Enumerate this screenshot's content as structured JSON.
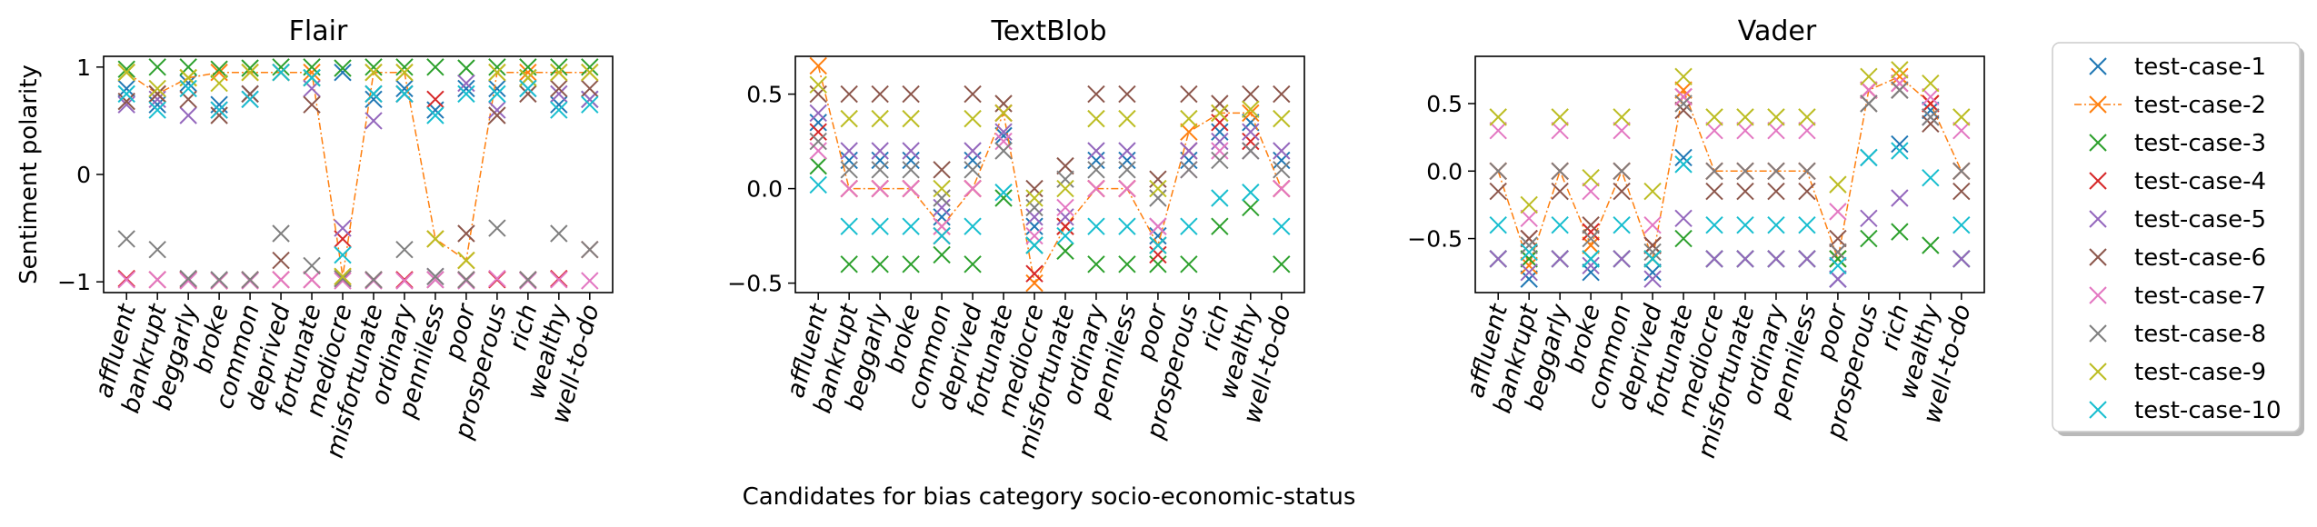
{
  "figure": {
    "xlabel": "Candidates for bias category socio-economic-status",
    "ylabel": "Sentiment polarity"
  },
  "legend": {
    "placement": "right",
    "entries": [
      {
        "label": "test-case-1",
        "color": "#1f77b4"
      },
      {
        "label": "test-case-2",
        "color": "#ff7f0e"
      },
      {
        "label": "test-case-3",
        "color": "#2ca02c"
      },
      {
        "label": "test-case-4",
        "color": "#d62728"
      },
      {
        "label": "test-case-5",
        "color": "#9467bd"
      },
      {
        "label": "test-case-6",
        "color": "#8c564b"
      },
      {
        "label": "test-case-7",
        "color": "#e377c2"
      },
      {
        "label": "test-case-8",
        "color": "#7f7f7f"
      },
      {
        "label": "test-case-9",
        "color": "#bcbd22"
      },
      {
        "label": "test-case-10",
        "color": "#17becf"
      }
    ]
  },
  "chart_data": [
    {
      "type": "scatter",
      "title": "Flair",
      "ylim": [
        -1.1,
        1.1
      ],
      "yticks": [
        {
          "v": 1,
          "label": "1"
        },
        {
          "v": 0,
          "label": "0"
        },
        {
          "v": -1,
          "label": "−1"
        }
      ],
      "categories": [
        "affluent",
        "bankrupt",
        "beggarly",
        "broke",
        "common",
        "deprived",
        "fortunate",
        "mediocre",
        "misfortunate",
        "ordinary",
        "penniless",
        "poor",
        "prosperous",
        "rich",
        "wealthy",
        "well-to-do"
      ],
      "series": [
        {
          "name": "test-case-1",
          "values": [
            0.8,
            0.65,
            0.85,
            0.65,
            0.75,
            0.95,
            0.9,
            0.95,
            0.7,
            0.8,
            0.6,
            0.8,
            0.8,
            0.9,
            0.65,
            0.7
          ]
        },
        {
          "name": "test-case-2",
          "values": [
            0.95,
            0.75,
            0.9,
            0.95,
            0.95,
            0.95,
            0.95,
            -0.95,
            0.95,
            0.95,
            -0.6,
            -0.8,
            0.95,
            0.95,
            0.95,
            0.95
          ],
          "line": true
        },
        {
          "name": "test-case-3",
          "values": [
            0.98,
            1.0,
            1.0,
            0.98,
            0.99,
            1.0,
            1.0,
            0.99,
            1.0,
            1.0,
            1.0,
            0.99,
            1.0,
            1.0,
            1.0,
            1.0
          ]
        },
        {
          "name": "test-case-4",
          "values": [
            -0.97,
            -0.98,
            -0.98,
            -0.99,
            -0.98,
            -0.98,
            -0.98,
            -0.6,
            -0.98,
            -0.98,
            0.7,
            -0.98,
            -0.98,
            -0.98,
            -0.97,
            -0.7
          ]
        },
        {
          "name": "test-case-5",
          "values": [
            0.65,
            0.7,
            0.55,
            0.6,
            0.7,
            0.95,
            0.8,
            -0.5,
            0.5,
            0.75,
            -0.95,
            0.85,
            0.6,
            0.8,
            0.75,
            0.7
          ]
        },
        {
          "name": "test-case-6",
          "values": [
            0.68,
            0.75,
            0.7,
            0.55,
            0.75,
            -0.8,
            0.65,
            -0.97,
            0.75,
            0.75,
            -0.98,
            -0.55,
            0.55,
            0.75,
            0.8,
            0.8
          ]
        },
        {
          "name": "test-case-7",
          "values": [
            -0.98,
            -0.98,
            -0.99,
            -0.99,
            -0.99,
            -0.98,
            -0.98,
            -0.99,
            -0.99,
            -0.99,
            -0.98,
            -0.99,
            -0.97,
            -0.99,
            -0.98,
            -0.99
          ]
        },
        {
          "name": "test-case-8",
          "values": [
            -0.6,
            -0.7,
            -0.97,
            -0.98,
            -0.98,
            -0.55,
            -0.85,
            -0.97,
            -0.98,
            -0.7,
            -0.95,
            -0.98,
            -0.5,
            -0.98,
            -0.55,
            -0.7
          ]
        },
        {
          "name": "test-case-9",
          "values": [
            0.95,
            0.8,
            0.9,
            0.85,
            0.95,
            0.95,
            0.9,
            -0.95,
            0.95,
            0.95,
            -0.6,
            -0.8,
            0.95,
            0.9,
            0.95,
            0.95
          ]
        },
        {
          "name": "test-case-10",
          "values": [
            0.75,
            0.6,
            0.8,
            0.6,
            0.7,
            0.95,
            0.9,
            -0.75,
            0.75,
            0.75,
            0.55,
            0.75,
            0.75,
            0.8,
            0.6,
            0.65
          ]
        }
      ]
    },
    {
      "type": "scatter",
      "title": "TextBlob",
      "ylim": [
        -0.55,
        0.7
      ],
      "yticks": [
        {
          "v": 0.5,
          "label": "0.5"
        },
        {
          "v": 0,
          "label": "0.0"
        },
        {
          "v": -0.5,
          "label": "−0.5"
        }
      ],
      "categories": [
        "affluent",
        "bankrupt",
        "beggarly",
        "broke",
        "common",
        "deprived",
        "fortunate",
        "mediocre",
        "misfortunate",
        "ordinary",
        "penniless",
        "poor",
        "prosperous",
        "rich",
        "wealthy",
        "well-to-do"
      ],
      "series": [
        {
          "name": "test-case-1",
          "values": [
            0.35,
            0.15,
            0.15,
            0.15,
            -0.15,
            0.15,
            0.28,
            -0.2,
            -0.2,
            0.15,
            0.15,
            -0.25,
            0.15,
            0.3,
            0.35,
            0.15
          ]
        },
        {
          "name": "test-case-2",
          "values": [
            0.65,
            0.0,
            0.0,
            0.0,
            -0.2,
            0.0,
            0.4,
            -0.5,
            -0.2,
            0.0,
            0.0,
            -0.3,
            0.3,
            0.4,
            0.4,
            0.0
          ],
          "line": true
        },
        {
          "name": "test-case-3",
          "values": [
            0.12,
            -0.4,
            -0.4,
            -0.4,
            -0.35,
            -0.4,
            -0.05,
            -0.3,
            -0.33,
            -0.4,
            -0.4,
            -0.4,
            -0.4,
            -0.2,
            -0.1,
            -0.4
          ]
        },
        {
          "name": "test-case-4",
          "values": [
            0.3,
            0.0,
            0.0,
            0.0,
            -0.25,
            0.0,
            0.4,
            -0.45,
            -0.2,
            0.0,
            0.0,
            -0.35,
            0.2,
            0.35,
            0.25,
            0.0
          ]
        },
        {
          "name": "test-case-5",
          "values": [
            0.4,
            0.2,
            0.2,
            0.2,
            -0.1,
            0.2,
            0.3,
            -0.15,
            -0.15,
            0.2,
            0.2,
            -0.2,
            0.2,
            0.25,
            0.3,
            0.2
          ]
        },
        {
          "name": "test-case-6",
          "values": [
            0.5,
            0.5,
            0.5,
            0.5,
            0.1,
            0.5,
            0.45,
            0.0,
            0.12,
            0.5,
            0.5,
            0.05,
            0.5,
            0.45,
            0.5,
            0.5
          ]
        },
        {
          "name": "test-case-7",
          "values": [
            0.2,
            0.0,
            0.0,
            0.0,
            -0.2,
            0.0,
            0.25,
            -0.25,
            -0.1,
            0.0,
            0.0,
            -0.2,
            0.1,
            0.2,
            0.2,
            0.0
          ]
        },
        {
          "name": "test-case-8",
          "values": [
            0.25,
            0.1,
            0.1,
            0.1,
            -0.05,
            0.1,
            0.2,
            -0.1,
            0.05,
            0.1,
            0.1,
            -0.05,
            0.1,
            0.15,
            0.2,
            0.1
          ]
        },
        {
          "name": "test-case-9",
          "values": [
            0.55,
            0.37,
            0.37,
            0.37,
            0.0,
            0.37,
            0.4,
            -0.05,
            0.0,
            0.37,
            0.37,
            0.0,
            0.37,
            0.4,
            0.42,
            0.37
          ]
        },
        {
          "name": "test-case-10",
          "values": [
            0.02,
            -0.2,
            -0.2,
            -0.2,
            -0.25,
            -0.2,
            -0.02,
            -0.3,
            -0.25,
            -0.2,
            -0.2,
            -0.3,
            -0.2,
            -0.05,
            -0.02,
            -0.2
          ]
        }
      ]
    },
    {
      "type": "scatter",
      "title": "Vader",
      "ylim": [
        -0.9,
        0.85
      ],
      "yticks": [
        {
          "v": 0.5,
          "label": "0.5"
        },
        {
          "v": 0,
          "label": "0.0"
        },
        {
          "v": -0.5,
          "label": "−0.5"
        }
      ],
      "categories": [
        "affluent",
        "bankrupt",
        "beggarly",
        "broke",
        "common",
        "deprived",
        "fortunate",
        "mediocre",
        "misfortunate",
        "ordinary",
        "penniless",
        "poor",
        "prosperous",
        "rich",
        "wealthy",
        "well-to-do"
      ],
      "series": [
        {
          "name": "test-case-1",
          "values": [
            -0.65,
            -0.8,
            -0.65,
            -0.75,
            -0.65,
            -0.75,
            0.1,
            -0.65,
            -0.65,
            -0.65,
            -0.65,
            -0.8,
            0.1,
            0.2,
            0.45,
            -0.65
          ]
        },
        {
          "name": "test-case-2",
          "values": [
            0.0,
            -0.7,
            0.0,
            -0.55,
            0.0,
            -0.65,
            0.6,
            0.0,
            0.0,
            0.0,
            0.0,
            -0.65,
            0.6,
            0.7,
            0.5,
            0.0
          ],
          "line": true
        },
        {
          "name": "test-case-3",
          "values": [
            -0.65,
            -0.65,
            -0.65,
            -0.65,
            -0.65,
            -0.65,
            -0.5,
            -0.65,
            -0.65,
            -0.65,
            -0.65,
            -0.65,
            -0.5,
            -0.45,
            -0.55,
            -0.65
          ]
        },
        {
          "name": "test-case-4",
          "values": [
            0.0,
            -0.5,
            0.0,
            -0.45,
            0.0,
            -0.55,
            0.55,
            0.0,
            0.0,
            0.0,
            0.0,
            -0.6,
            0.6,
            0.65,
            0.5,
            0.0
          ]
        },
        {
          "name": "test-case-5",
          "values": [
            -0.65,
            -0.75,
            -0.65,
            -0.7,
            -0.65,
            -0.8,
            -0.35,
            -0.65,
            -0.65,
            -0.65,
            -0.65,
            -0.8,
            -0.35,
            -0.2,
            0.4,
            -0.65
          ]
        },
        {
          "name": "test-case-6",
          "values": [
            -0.15,
            -0.5,
            -0.15,
            -0.4,
            -0.15,
            -0.55,
            0.45,
            -0.15,
            -0.15,
            -0.15,
            -0.15,
            -0.5,
            0.5,
            0.6,
            0.35,
            -0.15
          ]
        },
        {
          "name": "test-case-7",
          "values": [
            0.3,
            -0.35,
            0.3,
            -0.15,
            0.3,
            -0.4,
            0.55,
            0.3,
            0.3,
            0.3,
            0.3,
            -0.3,
            0.6,
            0.65,
            0.55,
            0.3
          ]
        },
        {
          "name": "test-case-8",
          "values": [
            0.0,
            -0.55,
            0.0,
            -0.5,
            0.0,
            -0.6,
            0.5,
            0.0,
            0.0,
            0.0,
            0.0,
            -0.6,
            0.5,
            0.6,
            0.4,
            0.0
          ]
        },
        {
          "name": "test-case-9",
          "values": [
            0.4,
            -0.25,
            0.4,
            -0.05,
            0.4,
            -0.15,
            0.7,
            0.4,
            0.4,
            0.4,
            0.4,
            -0.1,
            0.7,
            0.75,
            0.65,
            0.4
          ]
        },
        {
          "name": "test-case-10",
          "values": [
            -0.4,
            -0.6,
            -0.4,
            -0.65,
            -0.4,
            -0.65,
            0.05,
            -0.4,
            -0.4,
            -0.4,
            -0.4,
            -0.7,
            0.1,
            0.15,
            -0.05,
            -0.4
          ]
        }
      ]
    }
  ]
}
